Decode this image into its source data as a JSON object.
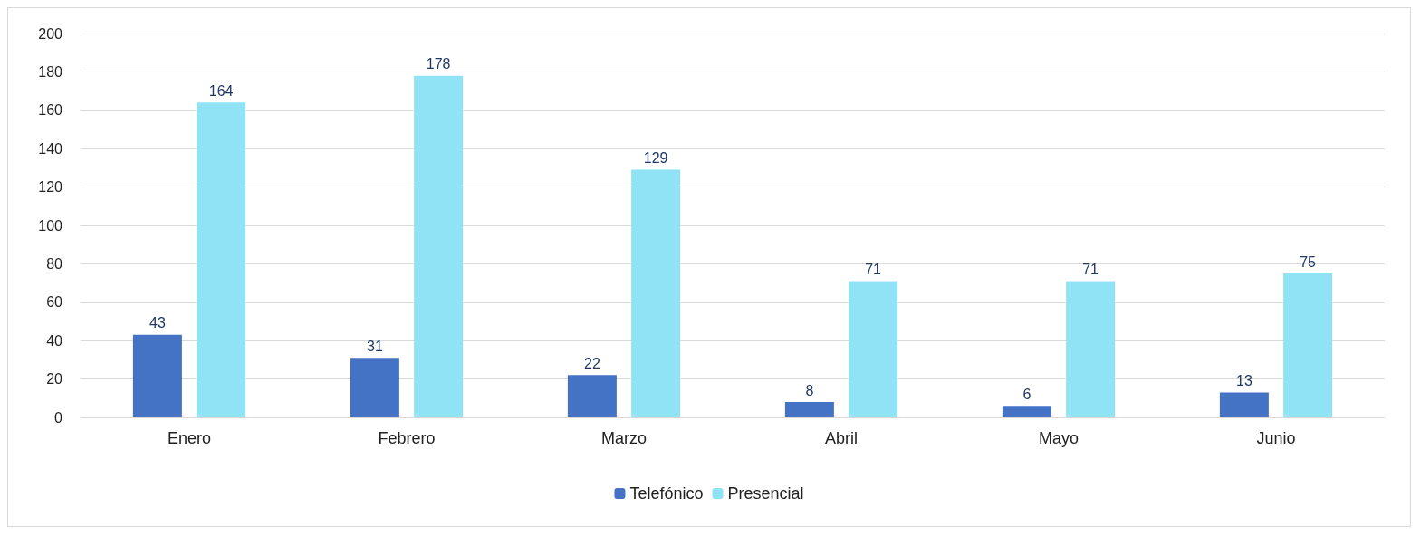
{
  "chart_data": {
    "type": "bar",
    "categories": [
      "Enero",
      "Febrero",
      "Marzo",
      "Abril",
      "Mayo",
      "Junio"
    ],
    "series": [
      {
        "name": "Telefónico",
        "color": "#4472c4",
        "values": [
          43,
          31,
          22,
          8,
          6,
          13
        ]
      },
      {
        "name": "Presencial",
        "color": "#8fe3f5",
        "values": [
          164,
          178,
          129,
          71,
          71,
          75
        ]
      }
    ],
    "ylim": [
      0,
      200
    ],
    "yticks": [
      0,
      20,
      40,
      60,
      80,
      100,
      120,
      140,
      160,
      180,
      200
    ],
    "grid": "y",
    "legend": "bottom",
    "data_labels": true
  }
}
